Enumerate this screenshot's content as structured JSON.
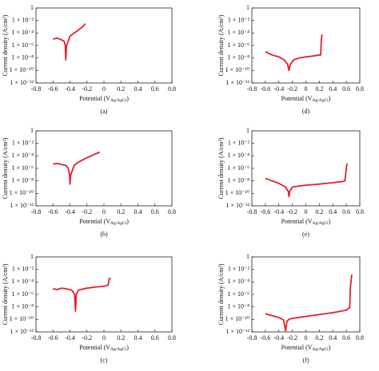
{
  "chart_data": [
    {
      "type": "line",
      "label": "(a)",
      "y_label": "Current density (A/cm²)",
      "x_label": "Potential (V",
      "x_label_sub": "Ag/AgCl",
      "x_label_end": ")",
      "xlim": [
        -0.8,
        0.8
      ],
      "xticks": [
        -0.8,
        -0.6,
        -0.4,
        -0.2,
        0,
        0.2,
        0.4,
        0.6,
        0.8
      ],
      "ylim": [
        1e-12,
        1
      ],
      "log_y": true,
      "yticks": [
        1,
        {
          "value": 0.01,
          "label": "1 × 10⁻²"
        },
        {
          "value": 0.0001,
          "label": "1 × 10⁻⁴"
        },
        {
          "value": 1e-06,
          "label": "1 × 10⁻⁶"
        },
        {
          "value": 1e-08,
          "label": "1 × 10⁻⁸"
        },
        {
          "value": 1e-10,
          "label": "1 × 10⁻¹⁰"
        },
        {
          "value": 1e-12,
          "label": "1 × 10⁻¹²"
        }
      ],
      "x": [
        -0.6,
        -0.55,
        -0.5,
        -0.47,
        -0.455,
        -0.45,
        -0.44,
        -0.4,
        -0.35,
        -0.3,
        -0.25,
        -0.22
      ],
      "series": [
        {
          "color": "#e3202b",
          "values": [
            1e-05,
            1.5e-05,
            8e-06,
            5e-06,
            1e-06,
            5e-09,
            1e-06,
            3e-05,
            0.0001,
            0.0003,
            0.001,
            0.003
          ]
        }
      ]
    },
    {
      "type": "line",
      "label": "(b)",
      "y_label": "Current density (A/cm²)",
      "x_label": "Potential (V",
      "x_label_sub": "Ag/AgCl",
      "x_label_end": ")",
      "xlim": [
        -0.8,
        0.8
      ],
      "xticks": [
        -0.8,
        -0.6,
        -0.4,
        -0.2,
        0,
        0.2,
        0.4,
        0.6,
        0.8
      ],
      "ylim": [
        1e-12,
        1
      ],
      "log_y": true,
      "yticks": [
        1,
        {
          "value": 0.01,
          "label": "1 × 10⁻²"
        },
        {
          "value": 0.0001,
          "label": "1 × 10⁻⁴"
        },
        {
          "value": 1e-06,
          "label": "1 × 10⁻⁶"
        },
        {
          "value": 1e-08,
          "label": "1 × 10⁻⁸"
        },
        {
          "value": 1e-10,
          "label": "1 × 10⁻¹⁰"
        },
        {
          "value": 1e-12,
          "label": "1 × 10⁻¹²"
        }
      ],
      "x": [
        -0.6,
        -0.55,
        -0.5,
        -0.45,
        -0.42,
        -0.405,
        -0.4,
        -0.39,
        -0.35,
        -0.3,
        -0.2,
        -0.1,
        -0.05
      ],
      "series": [
        {
          "color": "#e3202b",
          "values": [
            5e-06,
            6e-06,
            4e-06,
            3e-06,
            1e-06,
            1e-07,
            3e-09,
            1e-07,
            3e-06,
            1e-05,
            5e-05,
            0.0002,
            0.0004
          ]
        }
      ]
    },
    {
      "type": "line",
      "label": "(c)",
      "y_label": "Current density (A/cm²)",
      "x_label": "Potential (V",
      "x_label_sub": "Ag/AgCl",
      "x_label_end": ")",
      "xlim": [
        -0.8,
        0.8
      ],
      "xticks": [
        -0.8,
        -0.6,
        -0.4,
        -0.2,
        0,
        0.2,
        0.4,
        0.6,
        0.8
      ],
      "ylim": [
        1e-12,
        1
      ],
      "log_y": true,
      "yticks": [
        1,
        {
          "value": 0.01,
          "label": "1 × 10⁻²"
        },
        {
          "value": 0.0001,
          "label": "1 × 10⁻⁴"
        },
        {
          "value": 1e-06,
          "label": "1 × 10⁻⁶"
        },
        {
          "value": 1e-08,
          "label": "1 × 10⁻⁸"
        },
        {
          "value": 1e-10,
          "label": "1 × 10⁻¹⁰"
        },
        {
          "value": 1e-12,
          "label": "1 × 10⁻¹²"
        }
      ],
      "x": [
        -0.6,
        -0.55,
        -0.5,
        -0.45,
        -0.38,
        -0.345,
        -0.335,
        -0.325,
        -0.3,
        -0.2,
        -0.1,
        0,
        0.05,
        0.06,
        0.08
      ],
      "series": [
        {
          "color": "#e3202b",
          "values": [
            8e-06,
            6e-06,
            1e-05,
            8e-06,
            5e-06,
            1e-06,
            2e-09,
            1e-06,
            5e-06,
            1e-05,
            1.5e-05,
            2e-05,
            3e-05,
            0.0003,
            0.0004
          ]
        }
      ]
    },
    {
      "type": "line",
      "label": "(d)",
      "y_label": "Current density (A/cm²)",
      "x_label": "Potential (V",
      "x_label_sub": "Ag/AgCl",
      "x_label_end": ")",
      "xlim": [
        -0.8,
        0.8
      ],
      "xticks": [
        -0.8,
        -0.6,
        -0.4,
        -0.2,
        0,
        0.2,
        0.4,
        0.6,
        0.8
      ],
      "ylim": [
        1e-12,
        1
      ],
      "log_y": true,
      "yticks": [
        1,
        {
          "value": 0.01,
          "label": "1 × 10⁻²"
        },
        {
          "value": 0.0001,
          "label": "1 × 10⁻⁴"
        },
        {
          "value": 1e-06,
          "label": "1 × 10⁻⁶"
        },
        {
          "value": 1e-08,
          "label": "1 × 10⁻⁸"
        },
        {
          "value": 1e-10,
          "label": "1 × 10⁻¹⁰"
        },
        {
          "value": 1e-12,
          "label": "1 × 10⁻¹²"
        }
      ],
      "x": [
        -0.6,
        -0.5,
        -0.4,
        -0.32,
        -0.27,
        -0.25,
        -0.23,
        -0.18,
        -0.1,
        0,
        0.1,
        0.2,
        0.22,
        0.23,
        0.24
      ],
      "series": [
        {
          "color": "#e3202b",
          "values": [
            1e-07,
            3e-08,
            1.5e-08,
            5e-09,
            1e-09,
            1e-10,
            1e-09,
            5e-09,
            1e-08,
            1.5e-08,
            2e-08,
            3e-08,
            3e-08,
            1e-05,
            6e-05
          ]
        }
      ]
    },
    {
      "type": "line",
      "label": "(e)",
      "y_label": "Current density (A/cm²)",
      "x_label": "Potential (V",
      "x_label_sub": "Ag/AgCl",
      "x_label_end": ")",
      "xlim": [
        -0.8,
        0.8
      ],
      "xticks": [
        -0.8,
        -0.6,
        -0.4,
        -0.2,
        0,
        0.2,
        0.4,
        0.6,
        0.8
      ],
      "ylim": [
        1e-12,
        1
      ],
      "log_y": true,
      "yticks": [
        1,
        {
          "value": 0.01,
          "label": "1 × 10⁻²"
        },
        {
          "value": 0.0001,
          "label": "1 × 10⁻⁴"
        },
        {
          "value": 1e-06,
          "label": "1 × 10⁻⁶"
        },
        {
          "value": 1e-08,
          "label": "1 × 10⁻⁸"
        },
        {
          "value": 1e-10,
          "label": "1 × 10⁻¹⁰"
        },
        {
          "value": 1e-12,
          "label": "1 × 10⁻¹²"
        }
      ],
      "x": [
        -0.6,
        -0.5,
        -0.4,
        -0.3,
        -0.26,
        -0.25,
        -0.24,
        -0.2,
        -0.1,
        0,
        0.2,
        0.4,
        0.55,
        0.58,
        0.6,
        0.61
      ],
      "series": [
        {
          "color": "#e3202b",
          "values": [
            2.5e-08,
            1e-08,
            4e-09,
            1e-09,
            2e-10,
            3e-11,
            2e-10,
            1e-09,
            1.5e-09,
            2e-09,
            3e-09,
            5e-09,
            8e-09,
            1e-08,
            1e-06,
            6e-06
          ]
        }
      ]
    },
    {
      "type": "line",
      "label": "(f)",
      "y_label": "Current density (A/cm²)",
      "x_label": "Potential (V",
      "x_label_sub": "Ag/AgCl",
      "x_label_end": ")",
      "xlim": [
        -0.8,
        0.8
      ],
      "xticks": [
        -0.8,
        -0.6,
        -0.4,
        -0.2,
        0,
        0.2,
        0.4,
        0.6,
        0.8
      ],
      "ylim": [
        1e-12,
        1
      ],
      "log_y": true,
      "yticks": [
        1,
        {
          "value": 0.01,
          "label": "1 × 10⁻²"
        },
        {
          "value": 0.0001,
          "label": "1 × 10⁻⁴"
        },
        {
          "value": 1e-06,
          "label": "1 × 10⁻⁶"
        },
        {
          "value": 1e-08,
          "label": "1 × 10⁻⁸"
        },
        {
          "value": 1e-10,
          "label": "1 × 10⁻¹⁰"
        },
        {
          "value": 1e-12,
          "label": "1 × 10⁻¹²"
        }
      ],
      "x": [
        -0.6,
        -0.5,
        -0.4,
        -0.33,
        -0.3,
        -0.28,
        -0.25,
        -0.2,
        0,
        0.2,
        0.4,
        0.6,
        0.65,
        0.66,
        0.68
      ],
      "series": [
        {
          "color": "#e3202b",
          "values": [
            8e-10,
            4e-10,
            2e-10,
            8e-11,
            1.5e-12,
            5e-11,
            1e-10,
            1.5e-10,
            3e-10,
            6e-10,
            1.2e-09,
            3e-09,
            8e-09,
            1e-05,
            0.0015
          ]
        }
      ]
    }
  ]
}
